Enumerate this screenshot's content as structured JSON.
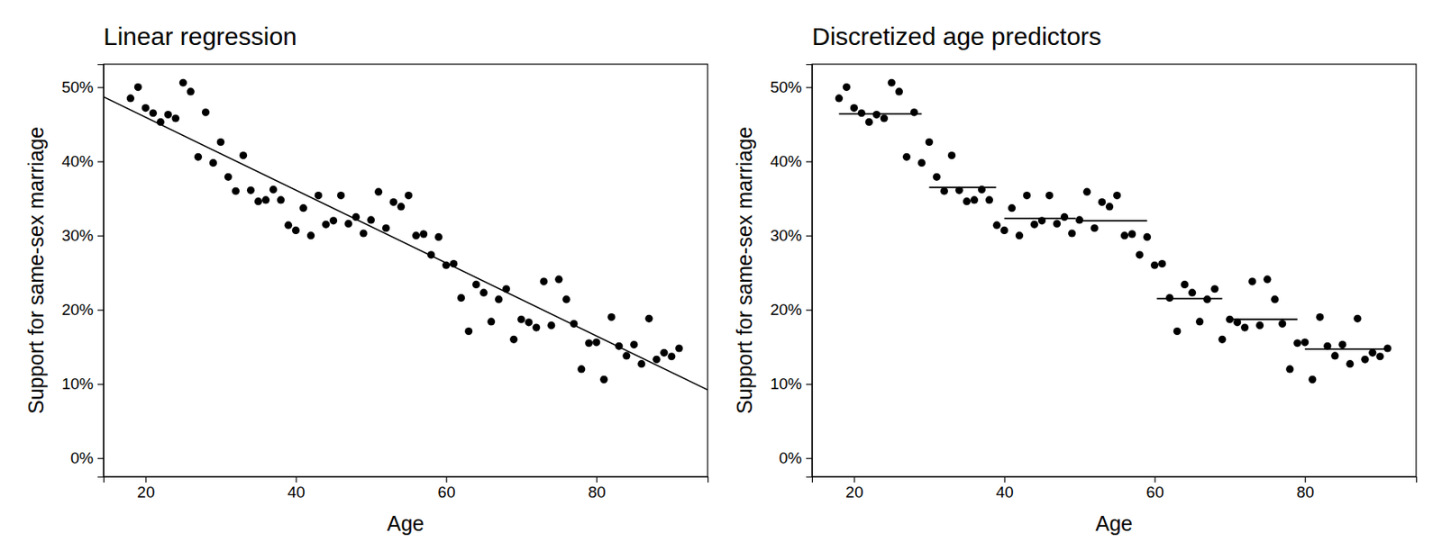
{
  "chart_data": [
    {
      "type": "scatter",
      "title": "Linear regression",
      "xlabel": "Age",
      "ylabel": "Support for same-sex marriage",
      "color": "#000000",
      "x": [
        18,
        19,
        20,
        21,
        22,
        23,
        24,
        25,
        26,
        27,
        28,
        29,
        30,
        31,
        32,
        33,
        34,
        35,
        36,
        37,
        38,
        39,
        40,
        41,
        42,
        43,
        44,
        45,
        46,
        47,
        48,
        49,
        50,
        51,
        52,
        53,
        54,
        55,
        56,
        57,
        58,
        59,
        60,
        61,
        62,
        63,
        64,
        65,
        66,
        67,
        68,
        69,
        70,
        71,
        72,
        73,
        74,
        75,
        76,
        77,
        78,
        79,
        80,
        81,
        82,
        83,
        84,
        85,
        86,
        87,
        88,
        89,
        90,
        91
      ],
      "values": [
        48.5,
        50.0,
        47.2,
        46.5,
        45.3,
        46.3,
        45.8,
        50.6,
        49.4,
        40.6,
        46.6,
        39.8,
        42.6,
        37.9,
        36.0,
        40.8,
        36.1,
        34.6,
        34.8,
        36.2,
        34.8,
        31.4,
        30.7,
        33.7,
        30.0,
        35.4,
        31.5,
        32.0,
        35.4,
        31.6,
        32.5,
        30.3,
        32.1,
        35.9,
        31.0,
        34.5,
        33.9,
        35.4,
        30.0,
        30.2,
        27.4,
        29.8,
        26.0,
        26.2,
        21.6,
        17.1,
        23.4,
        22.3,
        18.4,
        21.4,
        22.8,
        16.0,
        18.7,
        18.3,
        17.6,
        23.8,
        17.9,
        24.1,
        21.4,
        18.1,
        12.0,
        15.5,
        15.6,
        10.6,
        19.0,
        15.1,
        13.8,
        15.3,
        12.7,
        18.8,
        13.3,
        14.2,
        13.7,
        14.8
      ],
      "fit": {
        "x": [
          14.4,
          94.8
        ],
        "values": [
          48.7,
          9.2
        ]
      },
      "xlim": [
        14.4,
        94.8
      ],
      "ylim": [
        -2.5,
        53.1
      ],
      "xticks": [
        20,
        40,
        60,
        80
      ],
      "yticks": [
        {
          "value": 0,
          "label": "0%"
        },
        {
          "value": 10,
          "label": "10%"
        },
        {
          "value": 20,
          "label": "20%"
        },
        {
          "value": 30,
          "label": "30%"
        },
        {
          "value": 40,
          "label": "40%"
        },
        {
          "value": 50,
          "label": "50%"
        }
      ]
    },
    {
      "type": "scatter",
      "title": "Discretized age predictors",
      "xlabel": "Age",
      "ylabel": "Support for same-sex marriage",
      "color": "#000000",
      "x": [
        18,
        19,
        20,
        21,
        22,
        23,
        24,
        25,
        26,
        27,
        28,
        29,
        30,
        31,
        32,
        33,
        34,
        35,
        36,
        37,
        38,
        39,
        40,
        41,
        42,
        43,
        44,
        45,
        46,
        47,
        48,
        49,
        50,
        51,
        52,
        53,
        54,
        55,
        56,
        57,
        58,
        59,
        60,
        61,
        62,
        63,
        64,
        65,
        66,
        67,
        68,
        69,
        70,
        71,
        72,
        73,
        74,
        75,
        76,
        77,
        78,
        79,
        80,
        81,
        82,
        83,
        84,
        85,
        86,
        87,
        88,
        89,
        90,
        91
      ],
      "values": [
        48.5,
        50.0,
        47.2,
        46.5,
        45.3,
        46.3,
        45.8,
        50.6,
        49.4,
        40.6,
        46.6,
        39.8,
        42.6,
        37.9,
        36.0,
        40.8,
        36.1,
        34.6,
        34.8,
        36.2,
        34.8,
        31.4,
        30.7,
        33.7,
        30.0,
        35.4,
        31.5,
        32.0,
        35.4,
        31.6,
        32.5,
        30.3,
        32.1,
        35.9,
        31.0,
        34.5,
        33.9,
        35.4,
        30.0,
        30.2,
        27.4,
        29.8,
        26.0,
        26.2,
        21.6,
        17.1,
        23.4,
        22.3,
        18.4,
        21.4,
        22.8,
        16.0,
        18.7,
        18.3,
        17.6,
        23.8,
        17.9,
        24.1,
        21.4,
        18.1,
        12.0,
        15.5,
        15.6,
        10.6,
        19.0,
        15.1,
        13.8,
        15.3,
        12.7,
        18.8,
        13.3,
        14.2,
        13.7,
        14.8
      ],
      "segments": {
        "x_start": [
          18,
          30,
          40,
          49.5,
          60.3,
          70,
          80
        ],
        "x_end": [
          29,
          38.9,
          49.5,
          59,
          69,
          79,
          91
        ],
        "values": [
          46.4,
          36.5,
          32.3,
          32.0,
          21.5,
          18.7,
          14.7
        ]
      },
      "xlim": [
        14.4,
        94.8
      ],
      "ylim": [
        -2.5,
        53.1
      ],
      "xticks": [
        20,
        40,
        60,
        80
      ],
      "yticks": [
        {
          "value": 0,
          "label": "0%"
        },
        {
          "value": 10,
          "label": "10%"
        },
        {
          "value": 20,
          "label": "20%"
        },
        {
          "value": 30,
          "label": "30%"
        },
        {
          "value": 40,
          "label": "40%"
        },
        {
          "value": 50,
          "label": "50%"
        }
      ]
    }
  ]
}
